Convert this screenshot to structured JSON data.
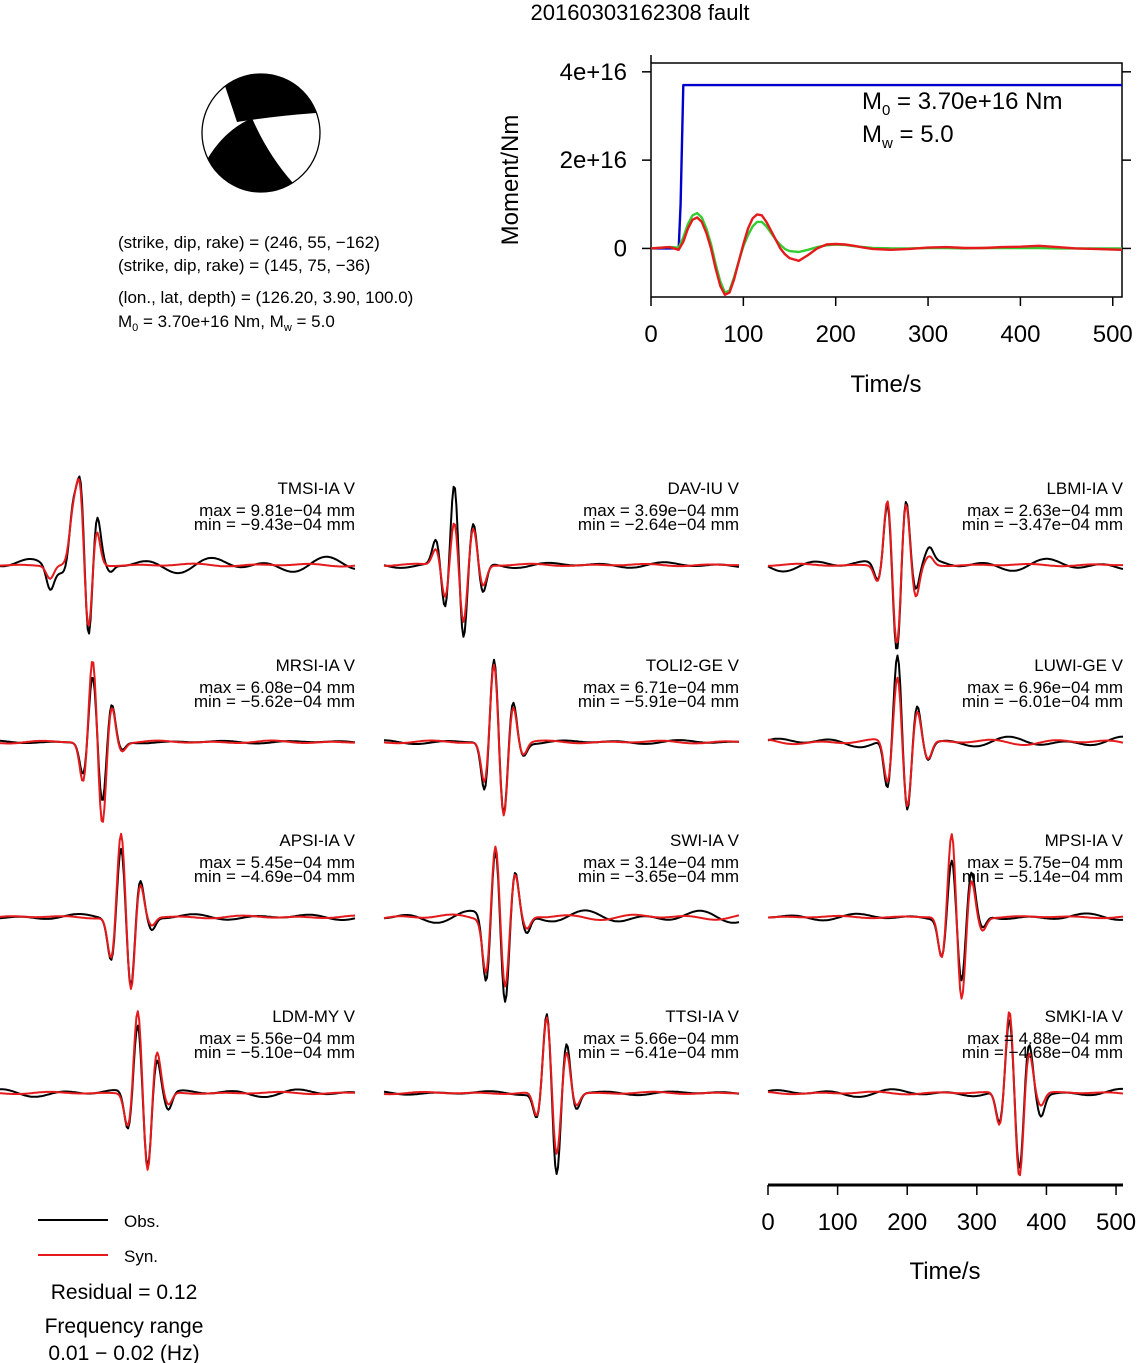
{
  "page": {
    "title": "20160303162308 fault"
  },
  "source": {
    "focal_line1": "(strike, dip, rake) = (246, 55, −162)",
    "focal_line2": "(strike, dip, rake) = (145, 75, −36)",
    "location_line": "(lon., lat, depth) = (126.20, 3.90, 100.0)",
    "moment_line_m": "M",
    "moment_line_sub0": "0",
    "moment_line_a": " = 3.70e+16 Nm, M",
    "moment_line_subw": "w",
    "moment_line_b": " = 5.0"
  },
  "moment_chart_text": {
    "m0_label": "M",
    "m0_sub": "0",
    "m0_value": " = 3.70e+16 Nm",
    "mw_label": "M",
    "mw_sub": "w",
    "mw_value": " = 5.0"
  },
  "legend": {
    "obs_label": "Obs.",
    "syn_label": "Syn.",
    "residual": "Residual = 0.12",
    "freq_title": "Frequency range",
    "freq_value": "0.01 − 0.02 (Hz)"
  },
  "colors": {
    "obs": "#000000",
    "syn": "#e41a1c",
    "moment_cumulative": "#0000cc",
    "moment_rate_green": "#33cc33"
  },
  "chart_data": [
    {
      "type": "line",
      "title": "",
      "xlabel": "Time/s",
      "ylabel": "Moment/Nm",
      "xlim": [
        0,
        510
      ],
      "ylim": [
        -11000000000000000,
        42000000000000000
      ],
      "x_ticks": [
        0,
        100,
        200,
        300,
        400,
        500
      ],
      "x_tick_labels": [
        "0",
        "100",
        "200",
        "300",
        "400",
        "500"
      ],
      "y_ticks": [
        0,
        20000000000000000,
        40000000000000000
      ],
      "y_tick_labels": [
        "0",
        "2e+16",
        "4e+16"
      ],
      "series": [
        {
          "color": "#0000cc",
          "x": [
            0,
            30,
            32,
            35,
            510
          ],
          "y": [
            0,
            0,
            10000000000000000,
            37000000000000000,
            37000000000000000
          ]
        },
        {
          "color": "#33cc33",
          "x": [
            0,
            20,
            30,
            35,
            40,
            45,
            50,
            55,
            60,
            65,
            70,
            75,
            80,
            85,
            90,
            95,
            100,
            105,
            110,
            115,
            120,
            125,
            130,
            135,
            140,
            145,
            150,
            160,
            170,
            180,
            190,
            200,
            210,
            220,
            230,
            240,
            260,
            280,
            300,
            320,
            340,
            360,
            380,
            400,
            420,
            440,
            460,
            480,
            510
          ],
          "y": [
            0,
            300000000000000,
            200000000000000,
            2500000000000000,
            5500000000000000,
            7500000000000000,
            8000000000000000,
            7000000000000000,
            4500000000000000,
            1000000000000000,
            -3500000000000000,
            -7500000000000000,
            -10000000000000000,
            -9500000000000000,
            -6500000000000000,
            -3000000000000000,
            500000000000000,
            3000000000000000,
            5000000000000000,
            6000000000000000,
            6000000000000000,
            5000000000000000,
            3500000000000000,
            2000000000000000,
            800000000000000,
            -100000000000000,
            -600000000000000,
            -800000000000000,
            -300000000000000,
            300000000000000,
            700000000000000,
            900000000000000,
            800000000000000,
            500000000000000,
            300000000000000,
            100000000000000,
            0,
            0,
            100000000000000,
            100000000000000,
            0,
            100000000000000,
            100000000000000,
            100000000000000,
            100000000000000,
            0,
            0,
            0,
            0
          ]
        },
        {
          "color": "#e41a1c",
          "x": [
            0,
            20,
            30,
            35,
            40,
            45,
            50,
            55,
            60,
            65,
            70,
            75,
            80,
            85,
            90,
            95,
            100,
            105,
            110,
            115,
            120,
            125,
            130,
            135,
            140,
            145,
            150,
            160,
            170,
            180,
            190,
            200,
            210,
            220,
            230,
            240,
            260,
            280,
            300,
            320,
            340,
            360,
            380,
            400,
            420,
            440,
            460,
            480,
            510
          ],
          "y": [
            0,
            300000000000000,
            -300000000000000,
            1500000000000000,
            4500000000000000,
            6500000000000000,
            7000000000000000,
            6000000000000000,
            3500000000000000,
            0,
            -4500000000000000,
            -8500000000000000,
            -10500000000000000,
            -10000000000000000,
            -7000000000000000,
            -3000000000000000,
            1000000000000000,
            4500000000000000,
            6800000000000000,
            7700000000000000,
            7500000000000000,
            6000000000000000,
            4000000000000000,
            2000000000000000,
            0,
            -1300000000000000,
            -2200000000000000,
            -2800000000000000,
            -1500000000000000,
            0,
            900000000000000,
            1000000000000000,
            900000000000000,
            600000000000000,
            200000000000000,
            -100000000000000,
            -300000000000000,
            -100000000000000,
            200000000000000,
            300000000000000,
            100000000000000,
            100000000000000,
            300000000000000,
            400000000000000,
            600000000000000,
            300000000000000,
            0,
            -100000000000000,
            -300000000000000
          ]
        }
      ]
    },
    {
      "type": "line",
      "title": "",
      "xlabel": "Time/s",
      "ylabel": "",
      "xlim": [
        0,
        510
      ],
      "x_ticks": [
        0,
        100,
        200,
        300,
        400,
        500
      ],
      "x_tick_labels": [
        "0",
        "100",
        "200",
        "300",
        "400",
        "500"
      ],
      "series_legend": [
        "Obs.",
        "Syn."
      ],
      "stations": [
        {
          "name": "TMSI-IA V",
          "max": "max = 9.81e−04 mm",
          "min": "min = −9.43e−04 mm",
          "obs_t": [
            72,
            105,
            116,
            127,
            139,
            158
          ],
          "obs_a": [
            -0.25,
            0.7,
            1.0,
            -1.0,
            0.55,
            -0.1
          ],
          "syn_t": [
            72,
            105,
            115,
            127,
            138,
            160
          ],
          "syn_a": [
            -0.15,
            0.55,
            0.9,
            -0.85,
            0.45,
            0
          ],
          "obs_tail": 0.28,
          "syn_tail": 0.05
        },
        {
          "name": "DAV-IU V",
          "max": "max = 3.69e−04 mm",
          "min": "min = −2.64e−04 mm",
          "obs_t": [
            75,
            88,
            101,
            114,
            128,
            142
          ],
          "obs_a": [
            0.3,
            -0.55,
            1.0,
            -0.9,
            0.5,
            -0.35
          ],
          "syn_t": [
            75,
            88,
            101,
            114,
            128,
            142
          ],
          "syn_a": [
            0.2,
            -0.4,
            0.55,
            -0.7,
            0.45,
            -0.25
          ],
          "obs_tail": 0.1,
          "syn_tail": 0.04
        },
        {
          "name": "LBMI-IA V",
          "max": "max = 2.63e−04 mm",
          "min": "min = −3.47e−04 mm",
          "obs_t": [
            158,
            172,
            185,
            198,
            212,
            232
          ],
          "obs_a": [
            -0.2,
            0.8,
            -1.0,
            0.85,
            -0.3,
            0.15
          ],
          "syn_t": [
            158,
            172,
            185,
            198,
            212,
            232
          ],
          "syn_a": [
            -0.2,
            0.8,
            -1.0,
            0.75,
            -0.4,
            0.1
          ],
          "obs_tail": 0.22,
          "syn_tail": 0.04
        },
        {
          "name": "MRSI-IA V",
          "max": "max = 6.08e−04 mm",
          "min": "min = −5.62e−04 mm",
          "obs_t": [
            120,
            133,
            147,
            160,
            175
          ],
          "obs_a": [
            -0.4,
            0.8,
            -0.75,
            0.45,
            -0.1
          ],
          "syn_t": [
            120,
            133,
            147,
            160,
            175
          ],
          "syn_a": [
            -0.5,
            1.0,
            -1.0,
            0.45,
            -0.1
          ],
          "obs_tail": 0.05,
          "syn_tail": 0.05
        },
        {
          "name": "TOLI2-GE V",
          "max": "max = 6.71e−04 mm",
          "min": "min = −5.91e−04 mm",
          "obs_t": [
            145,
            158,
            172,
            185,
            200
          ],
          "obs_a": [
            -0.6,
            1.0,
            -0.9,
            0.5,
            -0.15
          ],
          "syn_t": [
            145,
            158,
            172,
            185,
            200
          ],
          "syn_a": [
            -0.5,
            0.95,
            -0.9,
            0.45,
            -0.15
          ],
          "obs_tail": 0.07,
          "syn_tail": 0.05
        },
        {
          "name": "LUWI-GE V",
          "max": "max = 6.96e−04 mm",
          "min": "min = −6.01e−04 mm",
          "obs_t": [
            172,
            186,
            200,
            214,
            230
          ],
          "obs_a": [
            -0.6,
            1.0,
            -0.85,
            0.45,
            -0.2
          ],
          "syn_t": [
            172,
            186,
            200,
            214,
            230
          ],
          "syn_a": [
            -0.5,
            0.8,
            -0.75,
            0.4,
            -0.2
          ],
          "obs_tail": 0.18,
          "syn_tail": 0.1
        },
        {
          "name": "APSI-IA V",
          "max": "max = 5.45e−04 mm",
          "min": "min = −4.69e−04 mm",
          "obs_t": [
            160,
            174,
            188,
            201,
            218
          ],
          "obs_a": [
            -0.5,
            0.85,
            -0.85,
            0.45,
            -0.15
          ],
          "syn_t": [
            160,
            174,
            188,
            201,
            218
          ],
          "syn_a": [
            -0.5,
            1.0,
            -0.9,
            0.4,
            -0.1
          ],
          "obs_tail": 0.1,
          "syn_tail": 0.05
        },
        {
          "name": "SWI-IA V",
          "max": "max = 3.14e−04 mm",
          "min": "min = −3.65e−04 mm",
          "obs_t": [
            147,
            160,
            174,
            188,
            205
          ],
          "obs_a": [
            -0.8,
            0.85,
            -1.0,
            0.55,
            -0.2
          ],
          "syn_t": [
            147,
            160,
            174,
            188,
            205
          ],
          "syn_a": [
            -0.65,
            0.9,
            -0.85,
            0.5,
            -0.15
          ],
          "obs_tail": 0.22,
          "syn_tail": 0.1
        },
        {
          "name": "MPSI-IA V",
          "max": "max = 5.75e−04 mm",
          "min": "min = −5.14e−04 mm",
          "obs_t": [
            250,
            264,
            278,
            292,
            308
          ],
          "obs_a": [
            -0.45,
            0.7,
            -0.8,
            0.5,
            -0.15
          ],
          "syn_t": [
            250,
            264,
            278,
            292,
            308
          ],
          "syn_a": [
            -0.5,
            1.0,
            -1.0,
            0.45,
            -0.15
          ],
          "obs_tail": 0.12,
          "syn_tail": 0.04
        },
        {
          "name": "LDM-MY V",
          "max": "max = 5.56e−04 mm",
          "min": "min = −5.10e−04 mm",
          "obs_t": [
            184,
            198,
            212,
            225,
            242
          ],
          "obs_a": [
            -0.45,
            0.85,
            -0.85,
            0.45,
            -0.2
          ],
          "syn_t": [
            184,
            198,
            212,
            225,
            242
          ],
          "syn_a": [
            -0.4,
            1.0,
            -0.95,
            0.5,
            -0.15
          ],
          "obs_tail": 0.14,
          "syn_tail": 0.04
        },
        {
          "name": "TTSI-IA V",
          "max": "max = 5.66e−04 mm",
          "min": "min = −6.41e−04 mm",
          "obs_t": [
            220,
            234,
            248,
            262,
            276
          ],
          "obs_a": [
            -0.3,
            0.95,
            -1.0,
            0.6,
            -0.2
          ],
          "syn_t": [
            220,
            234,
            248,
            262,
            276
          ],
          "syn_a": [
            -0.3,
            0.9,
            -0.75,
            0.5,
            -0.15
          ],
          "obs_tail": 0.07,
          "syn_tail": 0.04
        },
        {
          "name": "SMKI-IA V",
          "max": "max = 4.88e−04 mm",
          "min": "min = −4.68e−04 mm",
          "obs_t": [
            333,
            347,
            361,
            375,
            392
          ],
          "obs_a": [
            -0.4,
            0.85,
            -0.95,
            0.6,
            -0.25
          ],
          "syn_t": [
            333,
            347,
            361,
            375,
            392
          ],
          "syn_a": [
            -0.4,
            1.0,
            -1.0,
            0.5,
            -0.15
          ],
          "obs_tail": 0.14,
          "syn_tail": 0.05
        }
      ]
    }
  ]
}
